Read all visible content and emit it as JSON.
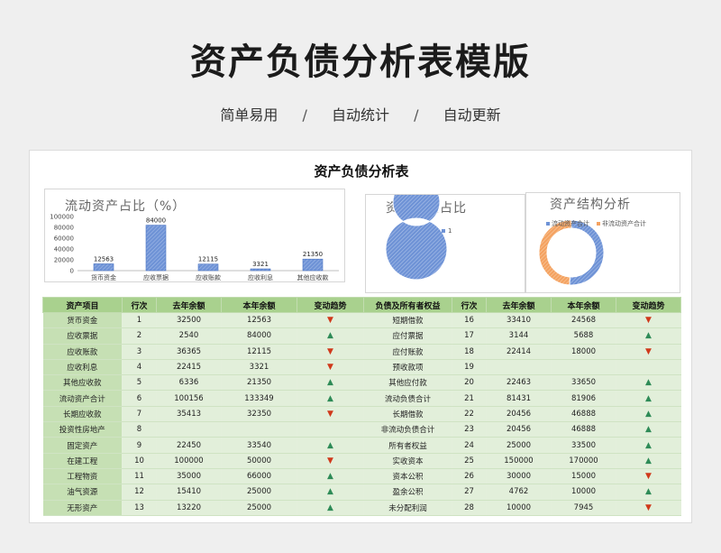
{
  "hero": {
    "title": "资产负债分析表模版",
    "features": [
      "简单易用",
      "自动统计",
      "自动更新"
    ],
    "separator": "/"
  },
  "sheet": {
    "title": "资产负债分析表"
  },
  "colors": {
    "header_green": "#a9d18e",
    "label_green": "#c6e0b4",
    "cell_green": "#e2efda",
    "bar_blue": "#4a74c4",
    "donut_orange": "#f4a261",
    "up": "#2e8b57",
    "down": "#d0391b"
  },
  "chart_data": [
    {
      "type": "bar",
      "title": "流动资产占比（%）",
      "categories": [
        "货币资金",
        "应收票据",
        "应收账款",
        "应收利息",
        "其他应收款"
      ],
      "values": [
        12563,
        84000,
        12115,
        3321,
        21350
      ],
      "data_labels": [
        "12563",
        "84000",
        "12115",
        "3321",
        "21350"
      ],
      "ylim": [
        0,
        100000
      ],
      "yticks": [
        "100000",
        "80000",
        "60000",
        "40000",
        "20000",
        "0"
      ],
      "grid": false
    },
    {
      "type": "pie",
      "title": "资产负债占比",
      "labels": [
        "1"
      ],
      "values": [
        100
      ],
      "legend_position": "right"
    },
    {
      "type": "pie",
      "title": "资产结构分析",
      "labels": [
        "流动资产合计",
        "非流动资产合计"
      ],
      "values": [
        133349,
        128400
      ],
      "legend_position": "top"
    }
  ],
  "table": {
    "headers": [
      "资产项目",
      "行次",
      "去年余额",
      "本年余额",
      "变动趋势",
      "负债及所有者权益",
      "行次",
      "去年余额",
      "本年余额",
      "变动趋势"
    ],
    "rows": [
      [
        "货币资金",
        "1",
        "32500",
        "12563",
        "down",
        "短期借款",
        "16",
        "33410",
        "24568",
        "down"
      ],
      [
        "应收票据",
        "2",
        "2540",
        "84000",
        "up",
        "应付票据",
        "17",
        "3144",
        "5688",
        "up"
      ],
      [
        "应收账款",
        "3",
        "36365",
        "12115",
        "down",
        "应付账款",
        "18",
        "22414",
        "18000",
        "down"
      ],
      [
        "应收利息",
        "4",
        "22415",
        "3321",
        "down",
        "预收款项",
        "19",
        "",
        "",
        ""
      ],
      [
        "其他应收款",
        "5",
        "6336",
        "21350",
        "up",
        "其他应付款",
        "20",
        "22463",
        "33650",
        "up"
      ],
      [
        "流动资产合计",
        "6",
        "100156",
        "133349",
        "up",
        "流动负债合计",
        "21",
        "81431",
        "81906",
        "up"
      ],
      [
        "长期应收款",
        "7",
        "35413",
        "32350",
        "down",
        "长期借款",
        "22",
        "20456",
        "46888",
        "up"
      ],
      [
        "投资性房地产",
        "8",
        "",
        "",
        "",
        "非流动负债合计",
        "23",
        "20456",
        "46888",
        "up"
      ],
      [
        "固定资产",
        "9",
        "22450",
        "33540",
        "up",
        "所有者权益",
        "24",
        "25000",
        "33500",
        "up"
      ],
      [
        "在建工程",
        "10",
        "100000",
        "50000",
        "down",
        "实收资本",
        "25",
        "150000",
        "170000",
        "up"
      ],
      [
        "工程物资",
        "11",
        "35000",
        "66000",
        "up",
        "资本公积",
        "26",
        "30000",
        "15000",
        "down"
      ],
      [
        "油气资源",
        "12",
        "15410",
        "25000",
        "up",
        "盈余公积",
        "27",
        "4762",
        "10000",
        "up"
      ],
      [
        "无形资产",
        "13",
        "13220",
        "25000",
        "up",
        "未分配利润",
        "28",
        "10000",
        "7945",
        "down"
      ]
    ]
  }
}
